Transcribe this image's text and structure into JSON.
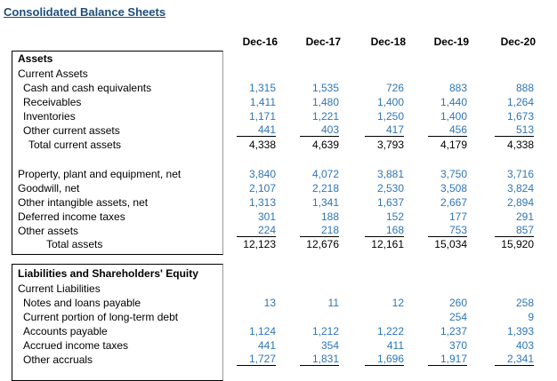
{
  "title": "Consolidated Balance Sheets",
  "columns": [
    "Dec-16",
    "Dec-17",
    "Dec-18",
    "Dec-19",
    "Dec-20"
  ],
  "rows": [
    {
      "label": "Assets"
    },
    {
      "label": "Current Assets"
    },
    {
      "label": "Cash and cash equivalents",
      "values": [
        "1,315",
        "1,535",
        "726",
        "883",
        "888"
      ]
    },
    {
      "label": "Receivables",
      "values": [
        "1,411",
        "1,480",
        "1,400",
        "1,440",
        "1,264"
      ]
    },
    {
      "label": "Inventories",
      "values": [
        "1,171",
        "1,221",
        "1,250",
        "1,400",
        "1,673"
      ]
    },
    {
      "label": "Other current assets",
      "values": [
        "441",
        "403",
        "417",
        "456",
        "513"
      ]
    },
    {
      "label": "Total current assets",
      "values": [
        "4,338",
        "4,639",
        "3,793",
        "4,179",
        "4,338"
      ]
    },
    {
      "label": "Property, plant and equipment, net",
      "values": [
        "3,840",
        "4,072",
        "3,881",
        "3,750",
        "3,716"
      ]
    },
    {
      "label": "Goodwill, net",
      "values": [
        "2,107",
        "2,218",
        "2,530",
        "3,508",
        "3,824"
      ]
    },
    {
      "label": "Other intangible assets, net",
      "values": [
        "1,313",
        "1,341",
        "1,637",
        "2,667",
        "2,894"
      ]
    },
    {
      "label": "Deferred income taxes",
      "values": [
        "301",
        "188",
        "152",
        "177",
        "291"
      ]
    },
    {
      "label": "Other assets",
      "values": [
        "224",
        "218",
        "168",
        "753",
        "857"
      ]
    },
    {
      "label": "Total assets",
      "values": [
        "12,123",
        "12,676",
        "12,161",
        "15,034",
        "15,920"
      ]
    },
    {
      "label": "Liabilities and Shareholders' Equity"
    },
    {
      "label": "Current Liabilities"
    },
    {
      "label": "Notes and loans payable",
      "values": [
        "13",
        "11",
        "12",
        "260",
        "258"
      ]
    },
    {
      "label": "Current portion of long-term debt",
      "values": [
        null,
        null,
        null,
        "254",
        "9"
      ]
    },
    {
      "label": "Accounts payable",
      "values": [
        "1,124",
        "1,212",
        "1,222",
        "1,237",
        "1,393"
      ]
    },
    {
      "label": "Accrued income taxes",
      "values": [
        "441",
        "354",
        "411",
        "370",
        "403"
      ]
    },
    {
      "label": "Other accruals",
      "values": [
        "1,727",
        "1,831",
        "1,696",
        "1,917",
        "2,341"
      ]
    }
  ]
}
